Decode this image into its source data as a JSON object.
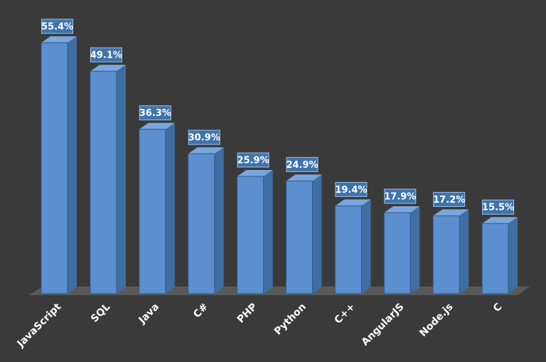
{
  "colors": {
    "background": "#3a3a3a",
    "floor": "#595959",
    "bar_front": "#5b8fcf",
    "bar_front_edge": "#2e5a8c",
    "bar_side": "#3f6ea3",
    "bar_top": "#7aa7dd",
    "label_box_fill": "#3f73ad",
    "label_box_stroke": "#9ec0e6",
    "text": "#ffffff"
  },
  "chart_data": {
    "type": "bar",
    "style": "3d-column",
    "categories": [
      "JavaScript",
      "SQL",
      "Java",
      "C#",
      "PHP",
      "Python",
      "C++",
      "AngularJS",
      "Node.js",
      "C"
    ],
    "values": [
      55.4,
      49.1,
      36.3,
      30.9,
      25.9,
      24.9,
      19.4,
      17.9,
      17.2,
      15.5
    ],
    "value_labels": [
      "55.4%",
      "49.1%",
      "36.3%",
      "30.9%",
      "25.9%",
      "24.9%",
      "19.4%",
      "17.9%",
      "17.2%",
      "15.5%"
    ],
    "unit": "%",
    "title": "",
    "xlabel": "",
    "ylabel": "",
    "ylim": [
      0,
      55.4
    ],
    "grid": false,
    "legend": "none",
    "data_labels": "above-bar"
  }
}
